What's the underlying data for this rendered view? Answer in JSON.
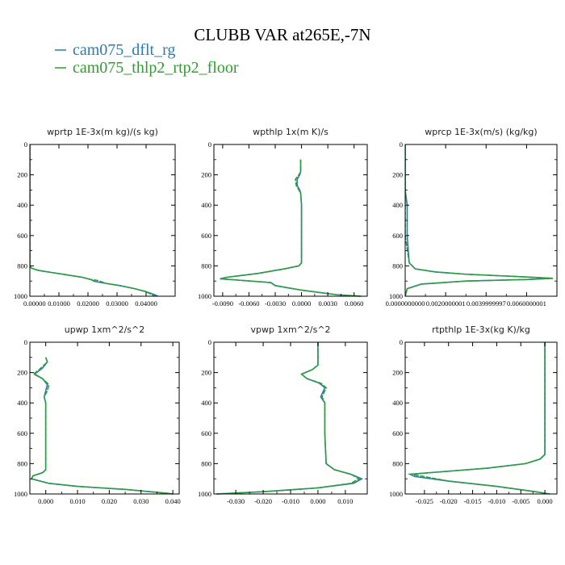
{
  "title": "CLUBB VAR at265E,-7N",
  "legend": [
    {
      "label": "cam075_dflt_rg",
      "color": "#2a7ab9"
    },
    {
      "label": "cam075_thlp2_rtp2_floor",
      "color": "#2ca02c"
    }
  ],
  "chart_data": [
    {
      "type": "line",
      "title": "wprtp  1E-3x(m kg)/(s kg)",
      "xlim": [
        0.0,
        0.05
      ],
      "ylim": [
        1000,
        0
      ],
      "xticks": [
        0.0,
        0.01,
        0.02,
        0.03,
        0.04
      ],
      "xtick_labels": [
        "0.00000",
        "0.01000",
        "0.02000",
        "0.03000",
        "0.04000"
      ],
      "yticks": [
        0,
        200,
        400,
        600,
        800,
        1000
      ],
      "ytick_labels": [
        "0",
        "200",
        "400",
        "600",
        "800",
        "1000"
      ],
      "series": [
        {
          "name": "cam075_dflt_rg",
          "x": [
            0.0,
            0.0,
            0.0,
            0.0,
            0.0,
            0.0,
            0.0005,
            0.003,
            0.008,
            0.013,
            0.018,
            0.021,
            0.022,
            0.023,
            0.026,
            0.031,
            0.036,
            0.04,
            0.043,
            0.044
          ],
          "y": [
            0,
            200,
            400,
            600,
            780,
            800,
            815,
            830,
            845,
            860,
            875,
            890,
            900,
            905,
            915,
            930,
            950,
            970,
            990,
            1000
          ]
        },
        {
          "name": "cam075_thlp2_rtp2_floor",
          "x": [
            0.0,
            0.0,
            0.0,
            0.0,
            0.0,
            0.0,
            0.0005,
            0.003,
            0.008,
            0.013,
            0.018,
            0.021,
            0.023,
            0.024,
            0.026,
            0.031,
            0.036,
            0.04,
            0.042,
            0.043
          ],
          "y": [
            0,
            200,
            400,
            600,
            780,
            800,
            815,
            830,
            845,
            860,
            875,
            890,
            895,
            900,
            915,
            930,
            950,
            970,
            990,
            1000
          ]
        }
      ]
    },
    {
      "type": "line",
      "title": "wpthlp  1x(m K)/s",
      "xlim": [
        -0.01,
        0.0075
      ],
      "ylim": [
        1000,
        0
      ],
      "xticks": [
        -0.009,
        -0.006,
        -0.003,
        0.0,
        0.003,
        0.006
      ],
      "xtick_labels": [
        "-0.0090",
        "-0.0060",
        "-0.0030",
        "0.0000",
        "0.0030",
        "0.0060"
      ],
      "yticks": [
        0,
        200,
        400,
        600,
        800,
        1000
      ],
      "ytick_labels": [
        "0",
        "200",
        "400",
        "600",
        "800",
        "1000"
      ],
      "series": [
        {
          "name": "cam075_dflt_rg",
          "x": [
            -0.0001,
            -0.0001,
            -0.0002,
            -0.0005,
            -0.0005,
            -0.0002,
            -0.0001,
            0.0,
            0.0,
            0.0,
            -0.0003,
            -0.002,
            -0.005,
            -0.0085,
            -0.0093,
            -0.007,
            -0.0035,
            -0.003,
            0.0,
            0.004,
            0.0068
          ],
          "y": [
            100,
            180,
            200,
            230,
            270,
            300,
            320,
            400,
            600,
            780,
            800,
            820,
            850,
            875,
            885,
            895,
            910,
            930,
            960,
            990,
            1000
          ]
        },
        {
          "name": "cam075_thlp2_rtp2_floor",
          "x": [
            -0.0001,
            -0.0001,
            -0.0003,
            -0.0007,
            -0.0006,
            -0.0003,
            -0.0001,
            0.0,
            0.0,
            0.0,
            -0.0003,
            -0.002,
            -0.005,
            -0.0085,
            -0.0093,
            -0.007,
            -0.0035,
            -0.003,
            0.0,
            0.004,
            0.0068
          ],
          "y": [
            100,
            180,
            200,
            230,
            270,
            300,
            320,
            400,
            600,
            780,
            800,
            820,
            850,
            875,
            885,
            895,
            910,
            930,
            960,
            990,
            1000
          ]
        }
      ]
    },
    {
      "type": "line",
      "title": "wprcp  1E-3x(m/s) (kg/kg)",
      "xlim": [
        0.0,
        0.0075
      ],
      "ylim": [
        1000,
        0
      ],
      "xticks": [
        0.0,
        0.002,
        0.004,
        0.006
      ],
      "xtick_labels": [
        "0.0000000000",
        "0.0020000001",
        "0.0039999997",
        "0.0060000001"
      ],
      "yticks": [
        0,
        200,
        400,
        600,
        800,
        1000
      ],
      "ytick_labels": [
        "0",
        "200",
        "400",
        "600",
        "800",
        "1000"
      ],
      "series": [
        {
          "name": "cam075_dflt_rg",
          "x": [
            0.0,
            0.0,
            0.0001,
            0.0001,
            0.0002,
            0.0005,
            0.0015,
            0.003,
            0.0055,
            0.0073,
            0.006,
            0.003,
            0.0008,
            0.0001,
            0.0
          ],
          "y": [
            0,
            300,
            400,
            600,
            780,
            820,
            840,
            855,
            870,
            882,
            890,
            900,
            920,
            950,
            1000
          ]
        },
        {
          "name": "cam075_thlp2_rtp2_floor",
          "x": [
            0.0,
            0.0,
            0.0,
            0.0,
            0.0002,
            0.0005,
            0.0015,
            0.003,
            0.0055,
            0.0073,
            0.006,
            0.003,
            0.0008,
            0.0001,
            0.0
          ],
          "y": [
            0,
            300,
            400,
            600,
            780,
            820,
            840,
            855,
            870,
            882,
            890,
            900,
            920,
            950,
            1000
          ]
        }
      ]
    },
    {
      "type": "line",
      "title": "upwp  1xm^2/s^2",
      "xlim": [
        -0.005,
        0.042
      ],
      "ylim": [
        1000,
        0
      ],
      "xticks": [
        0.0,
        0.01,
        0.02,
        0.03,
        0.04
      ],
      "xtick_labels": [
        "0.000",
        "0.010",
        "0.020",
        "0.030",
        "0.040"
      ],
      "yticks": [
        0,
        200,
        400,
        600,
        800,
        1000
      ],
      "ytick_labels": [
        "0",
        "200",
        "400",
        "600",
        "800",
        "1000"
      ],
      "series": [
        {
          "name": "cam075_dflt_rg",
          "x": [
            0.0,
            0.0005,
            -0.001,
            -0.0035,
            -0.001,
            0.0005,
            0.0,
            -0.0005,
            0.0,
            0.0,
            0.0,
            -0.001,
            -0.004,
            -0.0045,
            0.001,
            0.01,
            0.025,
            0.038,
            0.04
          ],
          "y": [
            100,
            130,
            170,
            210,
            240,
            280,
            320,
            360,
            400,
            600,
            840,
            860,
            880,
            900,
            930,
            950,
            970,
            995,
            1000
          ]
        },
        {
          "name": "cam075_thlp2_rtp2_floor",
          "x": [
            0.0,
            0.0005,
            -0.0015,
            -0.0038,
            -0.001,
            0.001,
            0.0005,
            -0.0005,
            0.0,
            0.0,
            0.0,
            -0.001,
            -0.004,
            -0.0045,
            0.001,
            0.01,
            0.025,
            0.038,
            0.04
          ],
          "y": [
            100,
            130,
            170,
            210,
            240,
            280,
            320,
            360,
            400,
            600,
            840,
            860,
            880,
            900,
            930,
            950,
            970,
            995,
            1000
          ]
        }
      ]
    },
    {
      "type": "line",
      "title": "vpwp  1xm^2/s^2",
      "xlim": [
        -0.038,
        0.018
      ],
      "ylim": [
        1000,
        0
      ],
      "xticks": [
        -0.03,
        -0.02,
        -0.01,
        0.0,
        0.01
      ],
      "xtick_labels": [
        "-0.030",
        "-0.020",
        "-0.010",
        "0.000",
        "0.010"
      ],
      "yticks": [
        0,
        200,
        400,
        600,
        800,
        1000
      ],
      "ytick_labels": [
        "0",
        "200",
        "400",
        "600",
        "800",
        "1000"
      ],
      "series": [
        {
          "name": "cam075_dflt_rg",
          "x": [
            0.0,
            0.0,
            -0.002,
            -0.006,
            -0.004,
            0.0005,
            0.0025,
            0.001,
            0.0025,
            0.0025,
            0.003,
            0.006,
            0.012,
            0.016,
            0.013,
            0.0,
            -0.02,
            -0.037
          ],
          "y": [
            0,
            150,
            180,
            210,
            240,
            270,
            300,
            360,
            400,
            600,
            800,
            840,
            870,
            900,
            930,
            960,
            985,
            1000
          ]
        },
        {
          "name": "cam075_thlp2_rtp2_floor",
          "x": [
            0.0,
            0.0,
            -0.002,
            -0.006,
            -0.004,
            0.001,
            0.003,
            0.0015,
            0.0025,
            0.0025,
            0.003,
            0.006,
            0.012,
            0.015,
            0.012,
            0.0,
            -0.02,
            -0.037
          ],
          "y": [
            0,
            150,
            180,
            210,
            240,
            270,
            300,
            360,
            400,
            600,
            800,
            840,
            870,
            900,
            930,
            960,
            985,
            1000
          ]
        }
      ]
    },
    {
      "type": "line",
      "title": "rtpthlp  1E-3x(kg K)/kg",
      "xlim": [
        -0.029,
        0.0025
      ],
      "ylim": [
        1000,
        0
      ],
      "xticks": [
        -0.025,
        -0.02,
        -0.015,
        -0.01,
        -0.005,
        0.0
      ],
      "xtick_labels": [
        "-0.025",
        "-0.020",
        "-0.015",
        "-0.010",
        "-0.005",
        "0.000"
      ],
      "yticks": [
        0,
        200,
        400,
        600,
        800,
        1000
      ],
      "ytick_labels": [
        "0",
        "200",
        "400",
        "600",
        "800",
        "1000"
      ],
      "series": [
        {
          "name": "cam075_dflt_rg",
          "x": [
            0.0,
            0.0,
            0.0,
            -0.001,
            -0.004,
            -0.012,
            -0.022,
            -0.028,
            -0.027,
            -0.02,
            -0.01,
            -0.002,
            0.001
          ],
          "y": [
            0,
            400,
            740,
            770,
            800,
            830,
            855,
            870,
            885,
            915,
            950,
            985,
            1000
          ]
        },
        {
          "name": "cam075_thlp2_rtp2_floor",
          "x": [
            0.0,
            0.0,
            0.0,
            -0.001,
            -0.004,
            -0.012,
            -0.022,
            -0.028,
            -0.026,
            -0.02,
            -0.01,
            -0.002,
            0.001
          ],
          "y": [
            0,
            400,
            740,
            770,
            800,
            830,
            855,
            870,
            880,
            915,
            950,
            985,
            1000
          ]
        }
      ]
    }
  ]
}
